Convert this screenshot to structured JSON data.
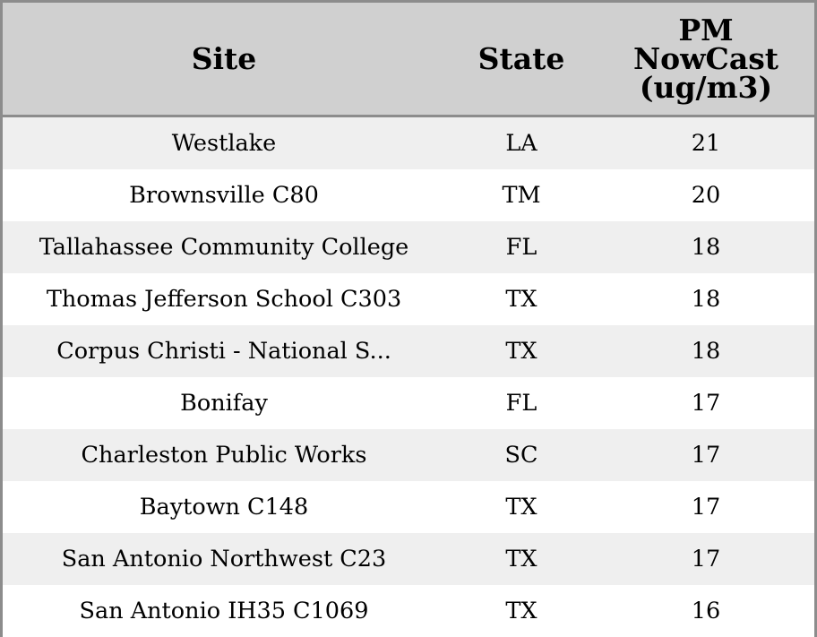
{
  "chart_data": {
    "type": "table",
    "columns": [
      "Site",
      "State",
      "PM\nNowCast\n(ug/m3)"
    ],
    "rows": [
      {
        "site": "Westlake",
        "state": "LA",
        "pm": 21
      },
      {
        "site": "Brownsville C80",
        "state": "TM",
        "pm": 20
      },
      {
        "site": "Tallahassee Community College",
        "state": "FL",
        "pm": 18
      },
      {
        "site": "Thomas Jefferson School C303",
        "state": "TX",
        "pm": 18
      },
      {
        "site": "Corpus Christi - National S...",
        "state": "TX",
        "pm": 18
      },
      {
        "site": "Bonifay",
        "state": "FL",
        "pm": 17
      },
      {
        "site": "Charleston Public Works",
        "state": "SC",
        "pm": 17
      },
      {
        "site": "Baytown C148",
        "state": "TX",
        "pm": 17
      },
      {
        "site": "San Antonio Northwest C23",
        "state": "TX",
        "pm": 17
      },
      {
        "site": "San Antonio IH35 C1069",
        "state": "TX",
        "pm": 16
      }
    ]
  },
  "colors": {
    "header_bg": "#d0d0d0",
    "stripe_bg": "#efefef",
    "border": "#8c8c8c"
  }
}
